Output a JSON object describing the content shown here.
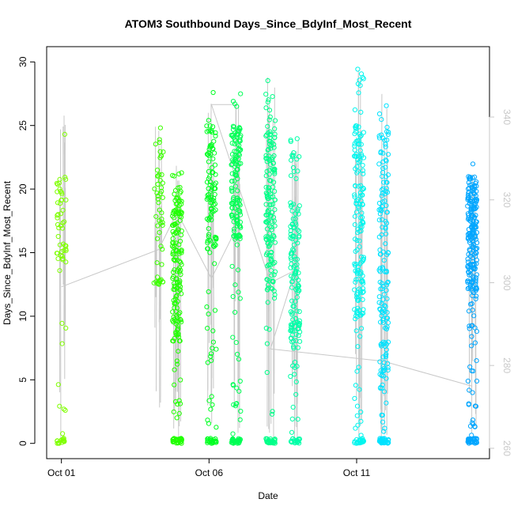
{
  "chart_data": {
    "type": "scatter",
    "title": "ATOM3 Southbound Days_Since_BdyInf_Most_Recent",
    "xlabel": "Date",
    "ylabel": "Days_Since_BdyInf_Most_Recent",
    "x_is_date": true,
    "xlim": [
      "2023-09-30T12:00",
      "2023-10-15T12:00"
    ],
    "ylim": [
      -1.2,
      31.2
    ],
    "yticks": [
      0,
      5,
      10,
      15,
      20,
      25,
      30
    ],
    "xticks": [
      {
        "date": "2023-10-01",
        "label": "Oct 01"
      },
      {
        "date": "2023-10-06",
        "label": "Oct 06"
      },
      {
        "date": "2023-10-11",
        "label": "Oct 11"
      }
    ],
    "y2lim": [
      257.5,
      357
    ],
    "y2ticks": [
      260,
      280,
      300,
      320,
      340
    ],
    "y2_color": "#c8c8c8",
    "line_color": "#c8c8c8",
    "marker": "open-circle",
    "grid": false,
    "legend": "none",
    "clusters": [
      {
        "x": "2023-10-01T00:00",
        "color": "#7fff00",
        "count": 70,
        "ymin": 0,
        "ymax": 26.5,
        "dense": [
          14,
          21
        ]
      },
      {
        "x": "2023-10-04T07:00",
        "color": "#3cff00",
        "count": 55,
        "ymin": 12.5,
        "ymax": 25,
        "dense": [
          16,
          24
        ]
      },
      {
        "x": "2023-10-04T22:00",
        "color": "#20ff00",
        "count": 200,
        "ymin": 0,
        "ymax": 22,
        "dense": [
          8,
          20
        ]
      },
      {
        "x": "2023-10-06T02:00",
        "color": "#00ff22",
        "count": 140,
        "ymin": 0,
        "ymax": 28,
        "dense": [
          15,
          25
        ]
      },
      {
        "x": "2023-10-06T22:00",
        "color": "#00ff55",
        "count": 190,
        "ymin": 0,
        "ymax": 27.5,
        "dense": [
          16,
          25
        ]
      },
      {
        "x": "2023-10-08T02:00",
        "color": "#00ff88",
        "count": 190,
        "ymin": 0,
        "ymax": 30,
        "dense": [
          12,
          25
        ]
      },
      {
        "x": "2023-10-08T22:00",
        "color": "#00ffa8",
        "count": 160,
        "ymin": 0,
        "ymax": 25,
        "dense": [
          6,
          19
        ]
      },
      {
        "x": "2023-10-11T02:00",
        "color": "#00f5ee",
        "count": 190,
        "ymin": 0,
        "ymax": 29.5,
        "dense": [
          10,
          25
        ]
      },
      {
        "x": "2023-10-11T22:00",
        "color": "#00e2ff",
        "count": 190,
        "ymin": 0,
        "ymax": 27.5,
        "dense": [
          4,
          25
        ]
      },
      {
        "x": "2023-10-14T22:00",
        "color": "#00a6ff",
        "count": 260,
        "ymin": 0,
        "ymax": 22,
        "dense": [
          12,
          21
        ]
      }
    ],
    "secondary_line": [
      {
        "x": "2023-10-01T00:00",
        "y2": 299
      },
      {
        "x": "2023-10-04T07:00",
        "y2": 308
      },
      {
        "x": "2023-10-04T22:00",
        "y2": 317
      },
      {
        "x": "2023-10-06T02:00",
        "y2": 301
      },
      {
        "x": "2023-10-06T22:00",
        "y2": 313
      },
      {
        "x": "2023-10-06T22:00",
        "y2": 343
      },
      {
        "x": "2023-10-06T02:00",
        "y2": 343
      },
      {
        "x": "2023-10-08T02:00",
        "y2": 300
      },
      {
        "x": "2023-10-08T22:00",
        "y2": 303
      },
      {
        "x": "2023-10-08T02:00",
        "y2": 284
      },
      {
        "x": "2023-10-11T22:00",
        "y2": 281
      },
      {
        "x": "2023-10-14T22:00",
        "y2": 275
      }
    ]
  }
}
